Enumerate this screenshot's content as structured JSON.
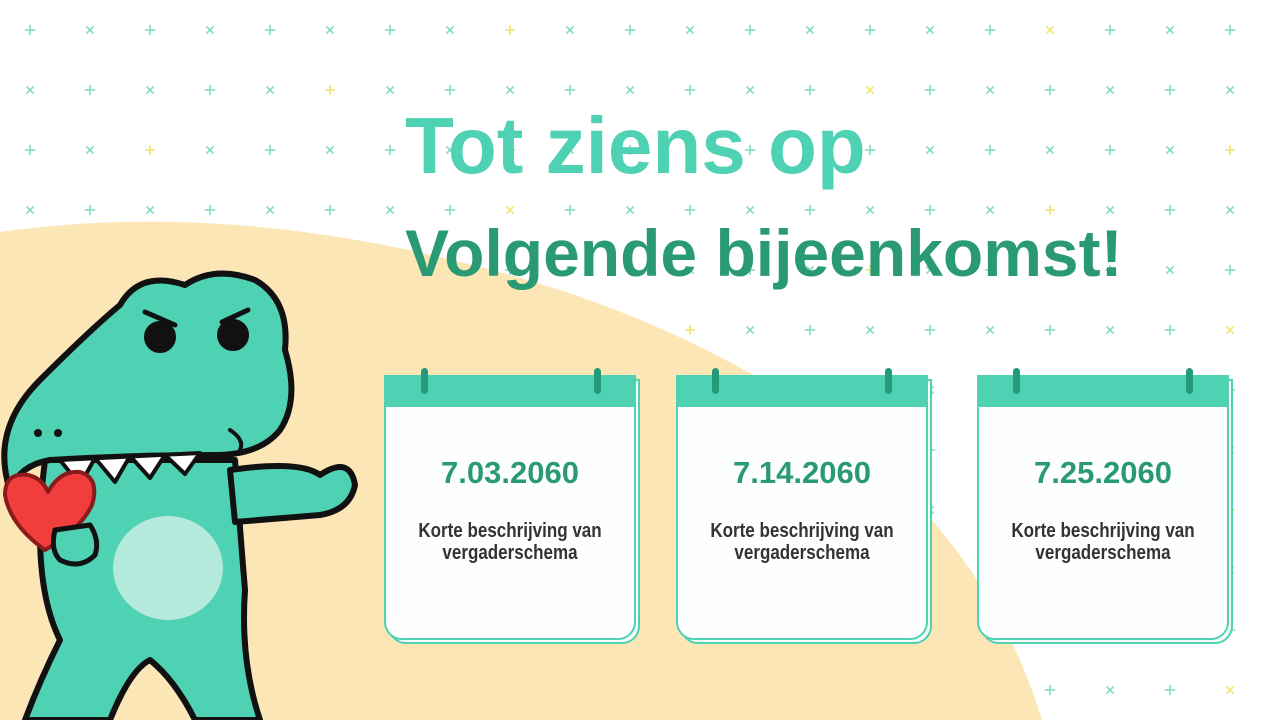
{
  "colors": {
    "accent": "#4fd1b3",
    "dark_accent": "#2a9a75",
    "beige": "#fde6b6",
    "heart": "#f23d3d"
  },
  "heading": {
    "line1": "Tot ziens op",
    "line2": "Volgende bijeenkomst!"
  },
  "meetings": [
    {
      "date": "7.03.2060",
      "description": "Korte beschrijving van vergaderschema"
    },
    {
      "date": "7.14.2060",
      "description": "Korte beschrijving van vergaderschema"
    },
    {
      "date": "7.25.2060",
      "description": "Korte beschrijving van vergaderschema"
    }
  ],
  "illustration": {
    "icon": "crocodile-holding-heart"
  }
}
